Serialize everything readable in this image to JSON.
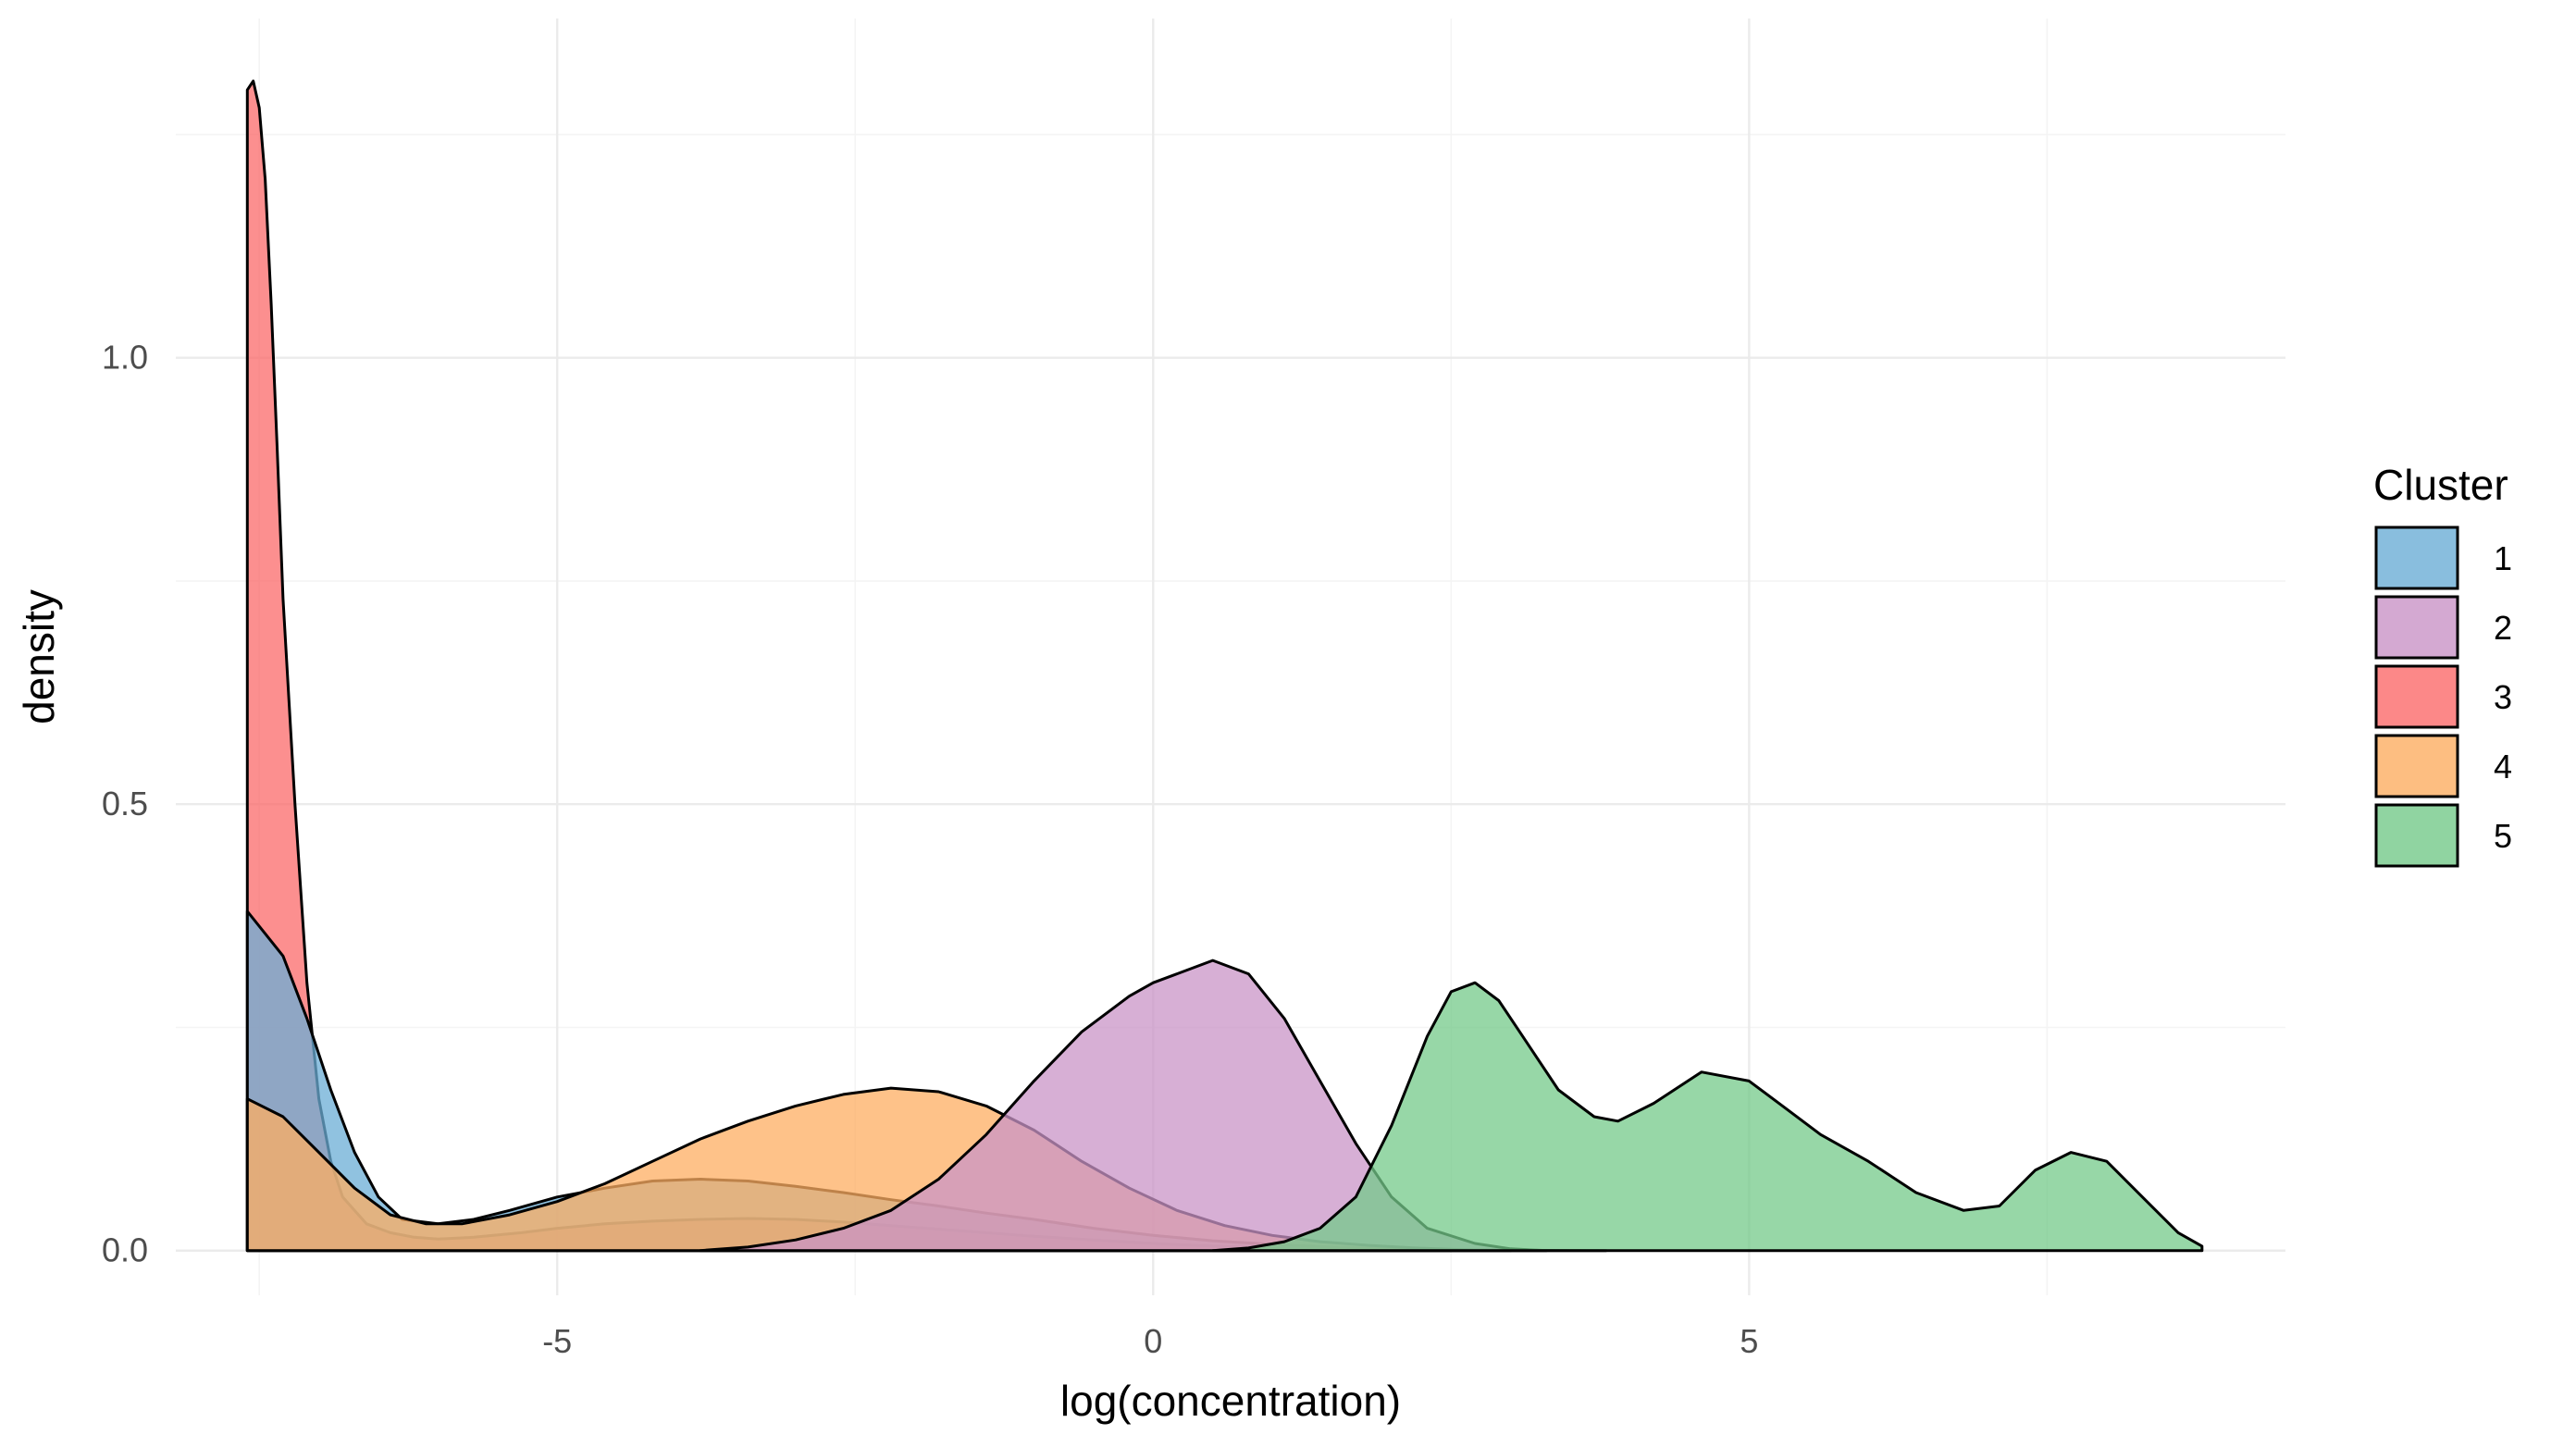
{
  "chart_data": {
    "type": "area",
    "title": "",
    "xlabel": "log(concentration)",
    "ylabel": "density",
    "xlim": [
      -8.2,
      9.5
    ],
    "ylim": [
      -0.05,
      1.38
    ],
    "x_ticks": [
      -5,
      0,
      5
    ],
    "x_tick_labels": [
      "-5",
      "0",
      "5"
    ],
    "y_ticks": [
      0.0,
      0.5,
      1.0
    ],
    "y_tick_labels": [
      "0.0",
      "0.5",
      "1.0"
    ],
    "grid": true,
    "legend": {
      "title": "Cluster",
      "position": "right",
      "entries": [
        "1",
        "2",
        "3",
        "4",
        "5"
      ]
    },
    "series": [
      {
        "name": "1",
        "color": "#6BAED6",
        "x": [
          -7.6,
          -7.3,
          -7.1,
          -6.9,
          -6.7,
          -6.5,
          -6.3,
          -6.0,
          -5.7,
          -5.4,
          -5.0,
          -4.6,
          -4.2,
          -3.8,
          -3.4,
          -3.0,
          -2.6,
          -2.2,
          -1.8,
          -1.4,
          -1.0,
          -0.5,
          0.0,
          0.5,
          1.0,
          1.5,
          2.0,
          2.5,
          3.0,
          3.5,
          3.8
        ],
        "y": [
          0.38,
          0.33,
          0.26,
          0.18,
          0.11,
          0.06,
          0.035,
          0.03,
          0.035,
          0.045,
          0.06,
          0.07,
          0.078,
          0.08,
          0.078,
          0.072,
          0.065,
          0.057,
          0.05,
          0.042,
          0.035,
          0.025,
          0.017,
          0.011,
          0.007,
          0.004,
          0.002,
          0.001,
          0.0005,
          0.0002,
          0.0
        ]
      },
      {
        "name": "2",
        "color": "#C994C7",
        "x": [
          -3.8,
          -3.4,
          -3.0,
          -2.6,
          -2.2,
          -1.8,
          -1.4,
          -1.0,
          -0.6,
          -0.2,
          0.0,
          0.2,
          0.5,
          0.8,
          1.1,
          1.4,
          1.7,
          2.0,
          2.3,
          2.7,
          3.0,
          3.3
        ],
        "y": [
          0.0,
          0.004,
          0.012,
          0.025,
          0.045,
          0.08,
          0.13,
          0.19,
          0.245,
          0.285,
          0.3,
          0.31,
          0.325,
          0.31,
          0.26,
          0.19,
          0.12,
          0.06,
          0.025,
          0.008,
          0.002,
          0.0
        ]
      },
      {
        "name": "3",
        "color": "#FB6A6A",
        "x": [
          -7.6,
          -7.55,
          -7.5,
          -7.45,
          -7.4,
          -7.35,
          -7.3,
          -7.2,
          -7.1,
          -7.0,
          -6.9,
          -6.8,
          -6.6,
          -6.4,
          -6.2,
          -6.0,
          -5.7,
          -5.3,
          -5.0,
          -4.6,
          -4.2,
          -3.8,
          -3.4,
          -3.0,
          -2.6,
          -2.2,
          -1.8,
          -1.4,
          -1.0,
          -0.5,
          0.0,
          0.5,
          1.0,
          1.5,
          2.0,
          2.5
        ],
        "y": [
          1.3,
          1.31,
          1.28,
          1.2,
          1.06,
          0.9,
          0.73,
          0.5,
          0.3,
          0.17,
          0.1,
          0.06,
          0.03,
          0.02,
          0.015,
          0.013,
          0.015,
          0.02,
          0.025,
          0.03,
          0.033,
          0.035,
          0.036,
          0.035,
          0.032,
          0.028,
          0.024,
          0.02,
          0.016,
          0.012,
          0.008,
          0.005,
          0.003,
          0.002,
          0.001,
          0.0
        ]
      },
      {
        "name": "4",
        "color": "#FDAE61",
        "x": [
          -7.6,
          -7.3,
          -7.0,
          -6.7,
          -6.4,
          -6.1,
          -5.8,
          -5.4,
          -5.0,
          -4.6,
          -4.2,
          -3.8,
          -3.4,
          -3.0,
          -2.6,
          -2.2,
          -1.8,
          -1.4,
          -1.0,
          -0.6,
          -0.2,
          0.2,
          0.6,
          1.0,
          1.4,
          1.8,
          2.2,
          2.6,
          3.0
        ],
        "y": [
          0.17,
          0.15,
          0.11,
          0.07,
          0.04,
          0.03,
          0.03,
          0.04,
          0.055,
          0.075,
          0.1,
          0.125,
          0.145,
          0.162,
          0.175,
          0.182,
          0.178,
          0.162,
          0.135,
          0.1,
          0.07,
          0.045,
          0.028,
          0.017,
          0.01,
          0.006,
          0.003,
          0.001,
          0.0
        ]
      },
      {
        "name": "5",
        "color": "#74C98A",
        "x": [
          0.5,
          0.8,
          1.1,
          1.4,
          1.7,
          2.0,
          2.3,
          2.5,
          2.7,
          2.9,
          3.1,
          3.4,
          3.7,
          3.9,
          4.2,
          4.6,
          5.0,
          5.3,
          5.6,
          6.0,
          6.4,
          6.8,
          7.1,
          7.4,
          7.7,
          8.0,
          8.3,
          8.6,
          8.8
        ],
        "y": [
          0.0,
          0.003,
          0.01,
          0.025,
          0.06,
          0.14,
          0.24,
          0.29,
          0.3,
          0.28,
          0.24,
          0.18,
          0.15,
          0.145,
          0.165,
          0.2,
          0.19,
          0.16,
          0.13,
          0.1,
          0.065,
          0.045,
          0.05,
          0.09,
          0.11,
          0.1,
          0.06,
          0.02,
          0.005
        ]
      }
    ]
  }
}
